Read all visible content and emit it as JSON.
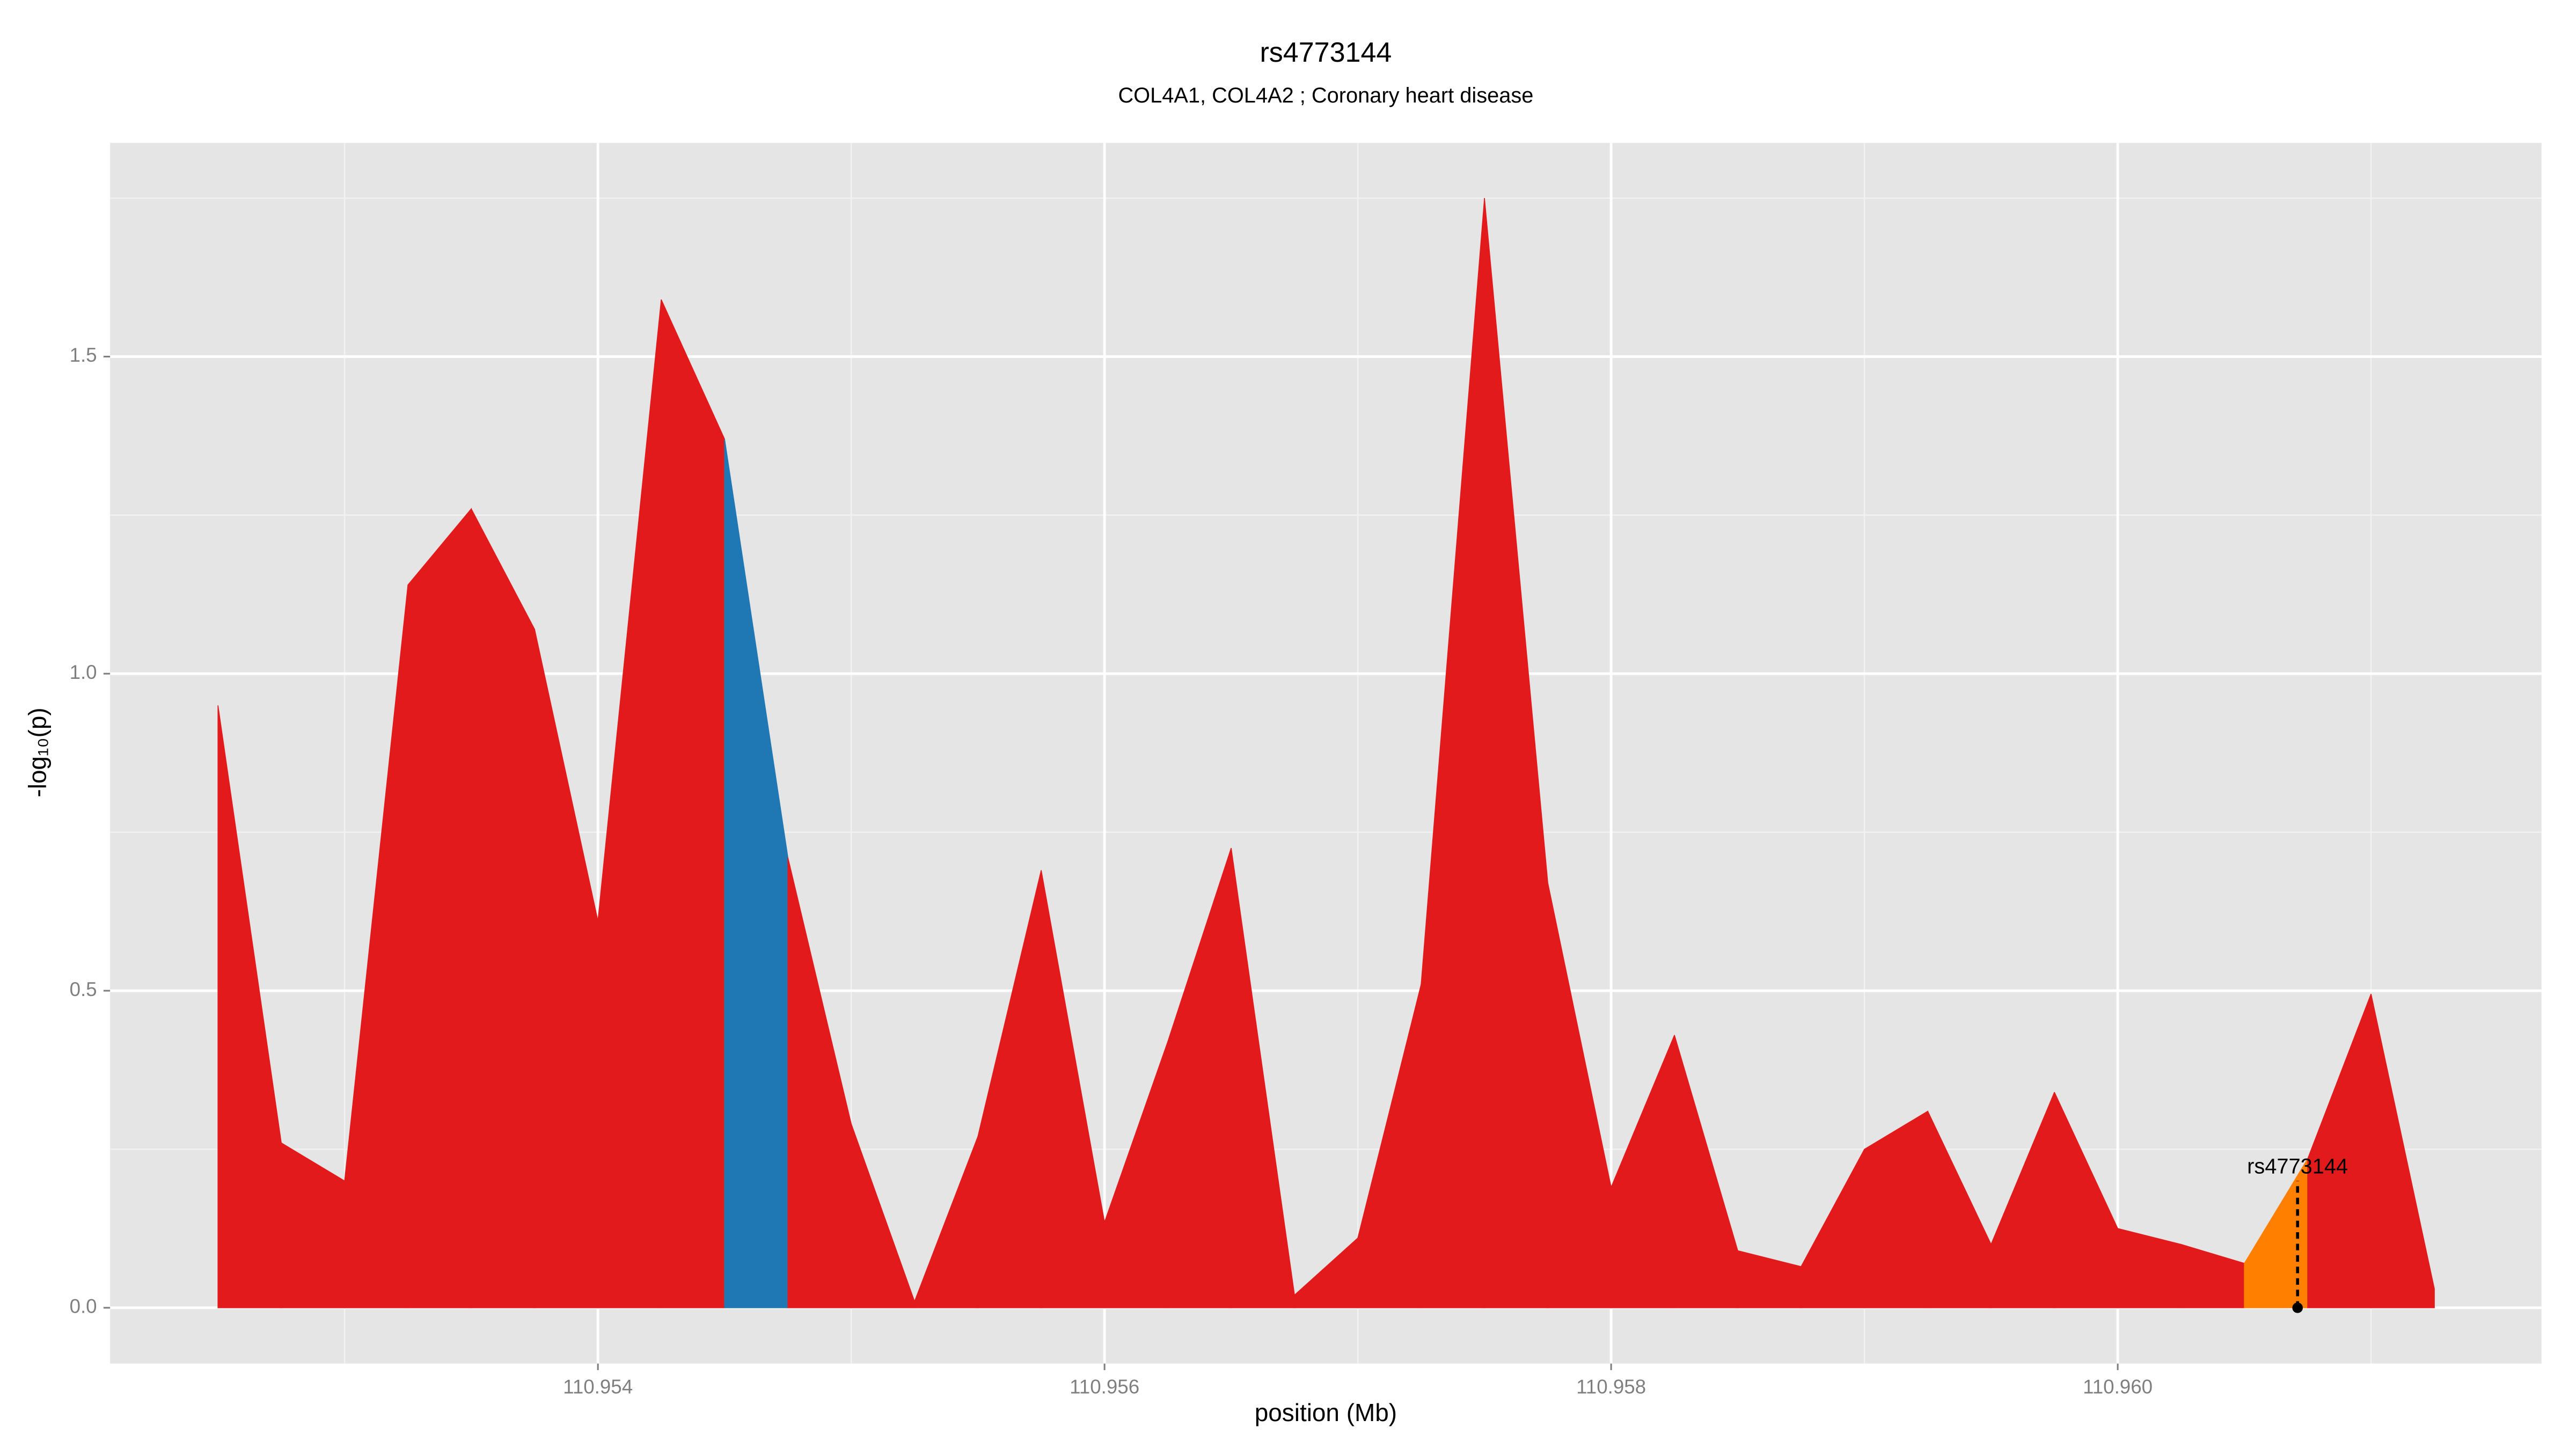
{
  "chart_data": {
    "type": "area",
    "title": "rs4773144",
    "subtitle": "COL4A1, COL4A2 ; Coronary heart disease",
    "xlabel": "position (Mb)",
    "ylabel": "-log₁₀(p)",
    "x": [
      110.9525,
      110.95275,
      110.953,
      110.95325,
      110.9535,
      110.95375,
      110.954,
      110.95425,
      110.9545,
      110.95475,
      110.955,
      110.95525,
      110.9555,
      110.95575,
      110.956,
      110.95625,
      110.9565,
      110.95675,
      110.957,
      110.95725,
      110.9575,
      110.95775,
      110.958,
      110.95825,
      110.9585,
      110.95875,
      110.959,
      110.95925,
      110.9595,
      110.95975,
      110.96,
      110.96025,
      110.9605,
      110.96075,
      110.961,
      110.96125
    ],
    "values": [
      0.95,
      0.26,
      0.2,
      1.14,
      1.26,
      1.07,
      0.61,
      1.59,
      1.37,
      0.71,
      0.29,
      0.01,
      0.27,
      0.69,
      0.135,
      0.42,
      0.725,
      0.02,
      0.11,
      0.51,
      1.75,
      0.67,
      0.19,
      0.43,
      0.09,
      0.065,
      0.25,
      0.31,
      0.1,
      0.34,
      0.125,
      0.1,
      0.07,
      0.235,
      0.495,
      0.03
    ],
    "segment_colors": [
      "#e31a1c",
      "#e31a1c",
      "#e31a1c",
      "#e31a1c",
      "#e31a1c",
      "#e31a1c",
      "#e31a1c",
      "#e31a1c",
      "#1f78b4",
      "#e31a1c",
      "#e31a1c",
      "#e31a1c",
      "#e31a1c",
      "#e31a1c",
      "#e31a1c",
      "#e31a1c",
      "#e31a1c",
      "#e31a1c",
      "#e31a1c",
      "#e31a1c",
      "#e31a1c",
      "#e31a1c",
      "#e31a1c",
      "#e31a1c",
      "#e31a1c",
      "#e31a1c",
      "#e31a1c",
      "#e31a1c",
      "#e31a1c",
      "#e31a1c",
      "#e31a1c",
      "#e31a1c",
      "#ff7f00",
      "#e31a1c",
      "#e31a1c"
    ],
    "annotation": {
      "label": "rs4773144",
      "x": 110.96071,
      "y": 0.2
    },
    "xlim": [
      110.952074,
      110.961673
    ],
    "ylim": [
      -0.088,
      1.837
    ],
    "xticks": [
      110.954,
      110.956,
      110.958,
      {
        "value": 110.96,
        "label": "110.960"
      }
    ],
    "minor_xticks": [
      110.953,
      110.955,
      110.957,
      110.959,
      110.961
    ],
    "yticks": [
      {
        "value": 0,
        "label": "0.0"
      },
      0.5,
      {
        "value": 1,
        "label": "1.0"
      },
      1.5
    ],
    "minor_yticks": [
      0.25,
      0.75,
      1.25,
      1.75
    ],
    "grid": true
  }
}
